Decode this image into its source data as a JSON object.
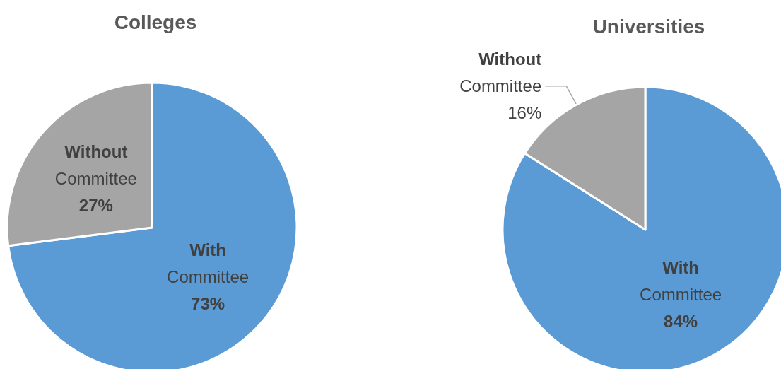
{
  "chart_data": [
    {
      "type": "pie",
      "title": "Colleges",
      "categories": [
        "With Committee",
        "Without Committee"
      ],
      "values": [
        73,
        27
      ],
      "colors": [
        "#5b9bd5",
        "#a5a5a5"
      ],
      "value_labels": [
        "73%",
        "27%"
      ],
      "legend": false
    },
    {
      "type": "pie",
      "title": "Universities",
      "categories": [
        "With Committee",
        "Without Committee"
      ],
      "values": [
        84,
        16
      ],
      "colors": [
        "#5b9bd5",
        "#a5a5a5"
      ],
      "value_labels": [
        "84%",
        "16%"
      ],
      "legend": false
    }
  ]
}
